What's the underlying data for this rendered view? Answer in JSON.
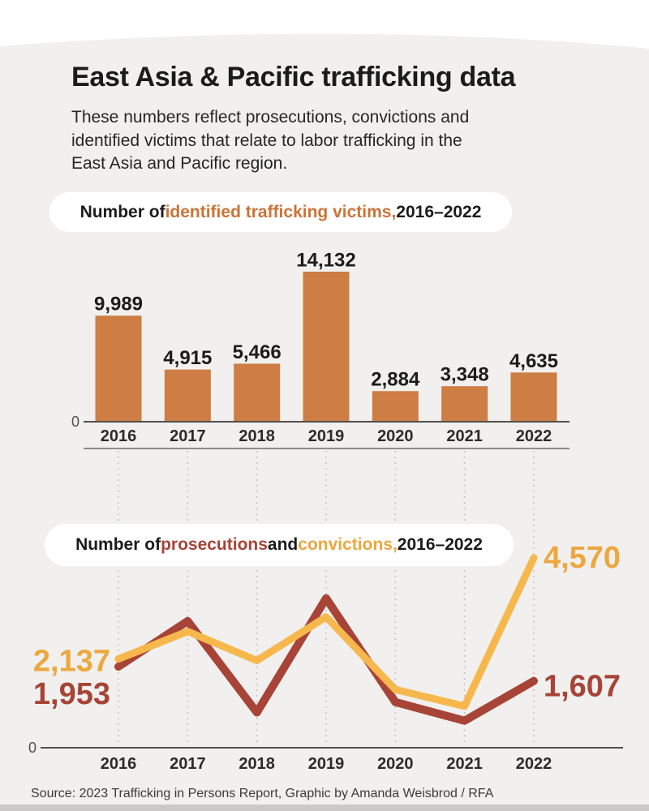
{
  "page": {
    "title": "East Asia & Pacific trafficking data",
    "subtitle_lines": [
      "These numbers reflect prosecutions, convictions and",
      "identified victims that relate to labor trafficking in the",
      "East Asia and Pacific region."
    ],
    "source": "Source: 2023 Trafficking in Persons Report, Graphic by Amanda Weisbrod / RFA"
  },
  "colors": {
    "background": "#f1f0ee",
    "bottom_strip": "#cbc8c5",
    "bar": "#ce7d44",
    "victims_text": "#cb7336",
    "prosecutions": "#a74437",
    "convictions_line": "#f6b84d",
    "convictions_text": "#eda73f",
    "axis": "#53504d",
    "separator": "#6f6c69",
    "dotted": "#c7c4c1",
    "text_dark": "#1b1b1b",
    "year_text": "#2b2b2b",
    "zero_text": "#53504d"
  },
  "chart_data": [
    {
      "type": "bar",
      "title_parts": [
        {
          "text": "Number of ",
          "color_key": "text_dark"
        },
        {
          "text": "identified trafficking victims,",
          "color_key": "victims_text"
        },
        {
          "text": " 2016–2022",
          "color_key": "text_dark"
        }
      ],
      "categories": [
        "2016",
        "2017",
        "2018",
        "2019",
        "2020",
        "2021",
        "2022"
      ],
      "values": [
        9989,
        4915,
        5466,
        14132,
        2884,
        3348,
        4635
      ],
      "value_labels": [
        "9,989",
        "4,915",
        "5,466",
        "14,132",
        "2,884",
        "3,348",
        "4,635"
      ],
      "zero_label": "0",
      "ylim": [
        0,
        15000
      ],
      "grid": false,
      "legend": "none"
    },
    {
      "type": "line",
      "title_parts": [
        {
          "text": "Number of ",
          "color_key": "text_dark"
        },
        {
          "text": "prosecutions",
          "color_key": "prosecutions"
        },
        {
          "text": " and ",
          "color_key": "text_dark"
        },
        {
          "text": "convictions,",
          "color_key": "convictions_text"
        },
        {
          "text": " 2016–2022",
          "color_key": "text_dark"
        }
      ],
      "categories": [
        "2016",
        "2017",
        "2018",
        "2019",
        "2020",
        "2021",
        "2022"
      ],
      "series": [
        {
          "name": "prosecutions",
          "color_key": "prosecutions",
          "values": [
            1953,
            3050,
            850,
            3600,
            1100,
            650,
            1607
          ],
          "labeled_values": {
            "2016": "1,953",
            "2022": "1,607"
          }
        },
        {
          "name": "convictions",
          "color_key": "convictions_line",
          "values": [
            2137,
            2800,
            2100,
            3150,
            1400,
            1000,
            4570
          ],
          "labeled_values": {
            "2016": "2,137",
            "2022": "4,570"
          }
        }
      ],
      "annotations": [
        {
          "text": "2,137",
          "series": "convictions",
          "index": 0,
          "side": "start"
        },
        {
          "text": "1,953",
          "series": "prosecutions",
          "index": 0,
          "side": "start"
        },
        {
          "text": "4,570",
          "series": "convictions",
          "index": 6,
          "side": "end"
        },
        {
          "text": "1,607",
          "series": "prosecutions",
          "index": 6,
          "side": "end"
        }
      ],
      "zero_label": "0",
      "ylim": [
        0,
        4800
      ],
      "grid": "dotted-vertical",
      "legend": "inline-colored-title"
    }
  ]
}
